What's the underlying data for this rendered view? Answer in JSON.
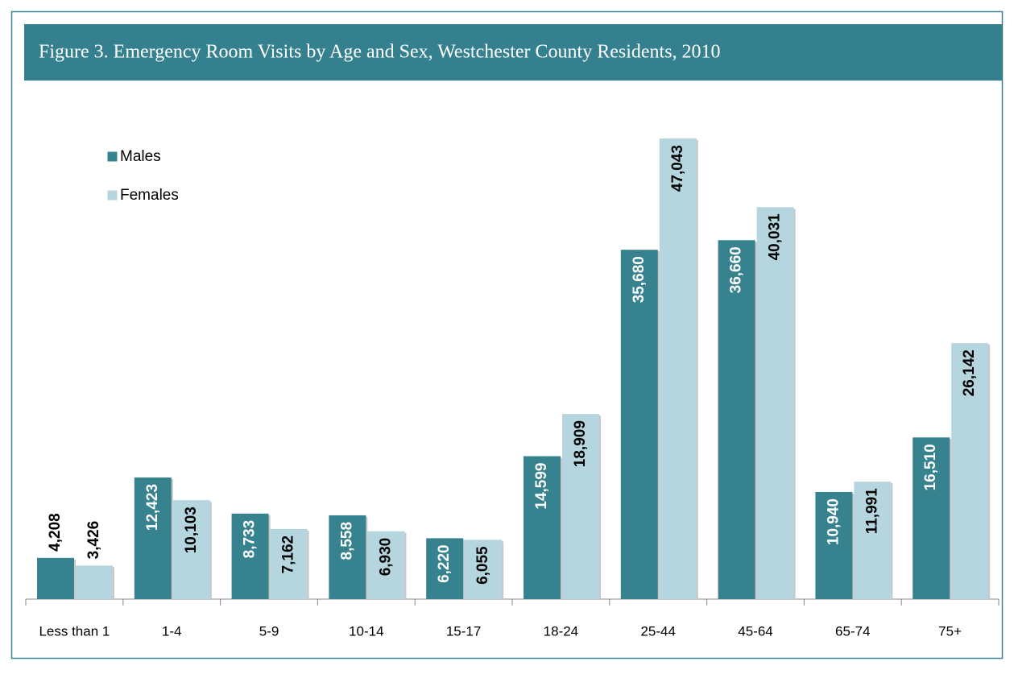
{
  "chart_data": {
    "type": "bar",
    "title": "Figure 3.  Emergency Room Visits by Age and Sex, Westchester County Residents, 2010",
    "categories": [
      "Less than 1",
      "1-4",
      "5-9",
      "10-14",
      "15-17",
      "18-24",
      "25-44",
      "45-64",
      "65-74",
      "75+"
    ],
    "series": [
      {
        "name": "Males",
        "color": "#37828f",
        "values": [
          4208,
          12423,
          8733,
          8558,
          6220,
          14599,
          35680,
          36660,
          10940,
          16510
        ],
        "value_labels": [
          "4,208",
          "12,423",
          "8,733",
          "8,558",
          "6,220",
          "14,599",
          "35,680",
          "36,660",
          "10,940",
          "16,510"
        ]
      },
      {
        "name": "Females",
        "color": "#b5d5df",
        "values": [
          3426,
          10103,
          7162,
          6930,
          6055,
          18909,
          47043,
          40031,
          11991,
          26142
        ],
        "value_labels": [
          "3,426",
          "10,103",
          "7,162",
          "6,930",
          "6,055",
          "18,909",
          "47,043",
          "40,031",
          "11,991",
          "26,142"
        ]
      }
    ]
  }
}
